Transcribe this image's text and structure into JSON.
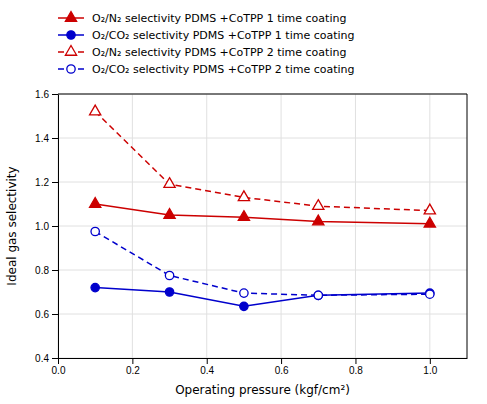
{
  "chart_data": {
    "type": "line",
    "x": [
      0.1,
      0.3,
      0.5,
      0.7,
      1.0
    ],
    "series": [
      {
        "name": "O₂/N₂ selectivity PDMS +CoTPP 1 time coating",
        "color": "#cc0000",
        "marker": "triangle",
        "line_style": "solid",
        "values": [
          1.1,
          1.05,
          1.04,
          1.02,
          1.01
        ]
      },
      {
        "name": "O₂/CO₂ selectivity PDMS +CoTPP 1 time coating",
        "color": "#0000cc",
        "marker": "circle",
        "line_style": "solid",
        "values": [
          0.72,
          0.7,
          0.635,
          0.685,
          0.695
        ]
      },
      {
        "name": "O₂/N₂ selectivity PDMS +CoTPP 2 time coating",
        "color": "#cc0000",
        "marker": "triangle-open",
        "line_style": "dashed",
        "values": [
          1.52,
          1.19,
          1.13,
          1.09,
          1.07
        ]
      },
      {
        "name": "O₂/CO₂ selectivity PDMS +CoTPP 2 time coating",
        "color": "#0000cc",
        "marker": "circle-open",
        "line_style": "dashed",
        "values": [
          0.975,
          0.775,
          0.695,
          0.685,
          0.69
        ]
      }
    ],
    "x_label": "Operating pressure (kgf/cm²)",
    "y_label": "Ideal gas selectivity",
    "xlim": [
      0.0,
      1.1
    ],
    "ylim": [
      0.4,
      1.6
    ],
    "xticks": [
      {
        "value": 0.0,
        "label": "0.0"
      },
      0.2,
      0.4,
      0.6,
      0.8,
      {
        "value": 1.0,
        "label": "1.0"
      }
    ],
    "yticks": [
      0.4,
      0.6,
      0.8,
      {
        "value": 1.0,
        "label": "1.0"
      },
      1.2,
      1.4,
      1.6
    ],
    "grid": true,
    "legend": "top"
  }
}
